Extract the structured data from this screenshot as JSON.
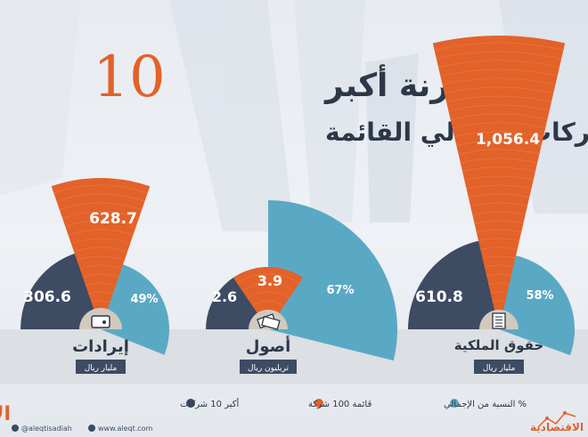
{
  "title": {
    "prefix": "مقارنة أكبر",
    "number": "10",
    "line2": "شركات بإجمالي القائمة"
  },
  "colors": {
    "dark": "#3d4b63",
    "orange": "#e2622a",
    "teal": "#5aa9c4",
    "tan": "#d2c9be",
    "text_dark": "#2d3748"
  },
  "chart_data": [
    {
      "type": "pie",
      "group": "إيرادات",
      "unit": "مليار ريال",
      "icon": "wallet-icon",
      "top10": "306.6",
      "total": "628.7",
      "pct": "49%",
      "pct_value": 49
    },
    {
      "type": "pie",
      "group": "أصول",
      "unit": "تريليون ريال",
      "icon": "cash-icon",
      "top10": "2.6",
      "total": "3.9",
      "pct": "67%",
      "pct_value": 67
    },
    {
      "type": "pie",
      "group": "حقوق الملكية",
      "unit": "مليار ريال",
      "icon": "document-icon",
      "top10": "610.8",
      "total": "1,056.4",
      "pct": "58%",
      "pct_value": 58
    }
  ],
  "legend": {
    "top10": "أكبر 10 شركات",
    "total": "قائمة 100 شركة",
    "pct": "% النسبة من الإجمالي"
  },
  "footer": {
    "brand": "الاقتصادية",
    "twitter": "@aleqtisadiah",
    "website": "www.aleqt.com",
    "brand_small": "الاقتصادية"
  }
}
